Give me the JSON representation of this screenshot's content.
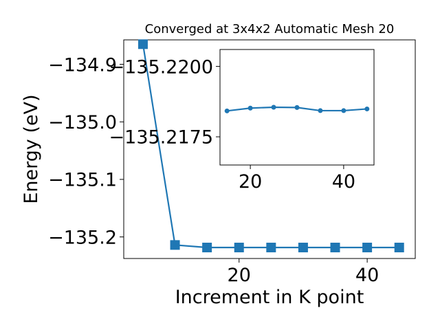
{
  "chart_data": [
    {
      "type": "line",
      "title": "Converged at 3x4x2 Automatic Mesh 20",
      "xlabel": "Increment in K point",
      "ylabel": "Energy (eV)",
      "xlim": [
        2.0,
        47.5
      ],
      "ylim": [
        -135.2375,
        -134.8575
      ],
      "xticks": [
        20,
        40
      ],
      "xtick_labels": [
        "20",
        "40"
      ],
      "yticks": [
        -134.9,
        -135.0,
        -135.1,
        -135.2
      ],
      "ytick_labels": [
        "−134.9",
        "−135.0",
        "−135.1",
        "−135.2"
      ],
      "marker": "square",
      "color": "#1f77b4",
      "series": [
        {
          "x": [
            5,
            10,
            15,
            20,
            25,
            30,
            35,
            40,
            45
          ],
          "y": [
            -134.865,
            -135.214,
            -135.2184,
            -135.2184,
            -135.2184,
            -135.2184,
            -135.2184,
            -135.2184,
            -135.2184
          ]
        }
      ]
    },
    {
      "type": "line",
      "inset": true,
      "title": "",
      "xlabel": "",
      "ylabel": "",
      "xlim": [
        13.5,
        46.5
      ],
      "ylim": [
        -135.2165,
        -135.2206
      ],
      "xticks": [
        20,
        40
      ],
      "xtick_labels": [
        "20",
        "40"
      ],
      "yticks": [
        -135.22,
        -135.2175
      ],
      "ytick_labels": [
        "−135.2200",
        "−135.2175"
      ],
      "marker": "circle",
      "color": "#1f77b4",
      "series": [
        {
          "x": [
            15,
            20,
            25,
            30,
            35,
            40,
            45
          ],
          "y": [
            -135.21842,
            -135.21852,
            -135.21855,
            -135.21854,
            -135.21843,
            -135.21843,
            -135.21849
          ]
        }
      ]
    }
  ]
}
